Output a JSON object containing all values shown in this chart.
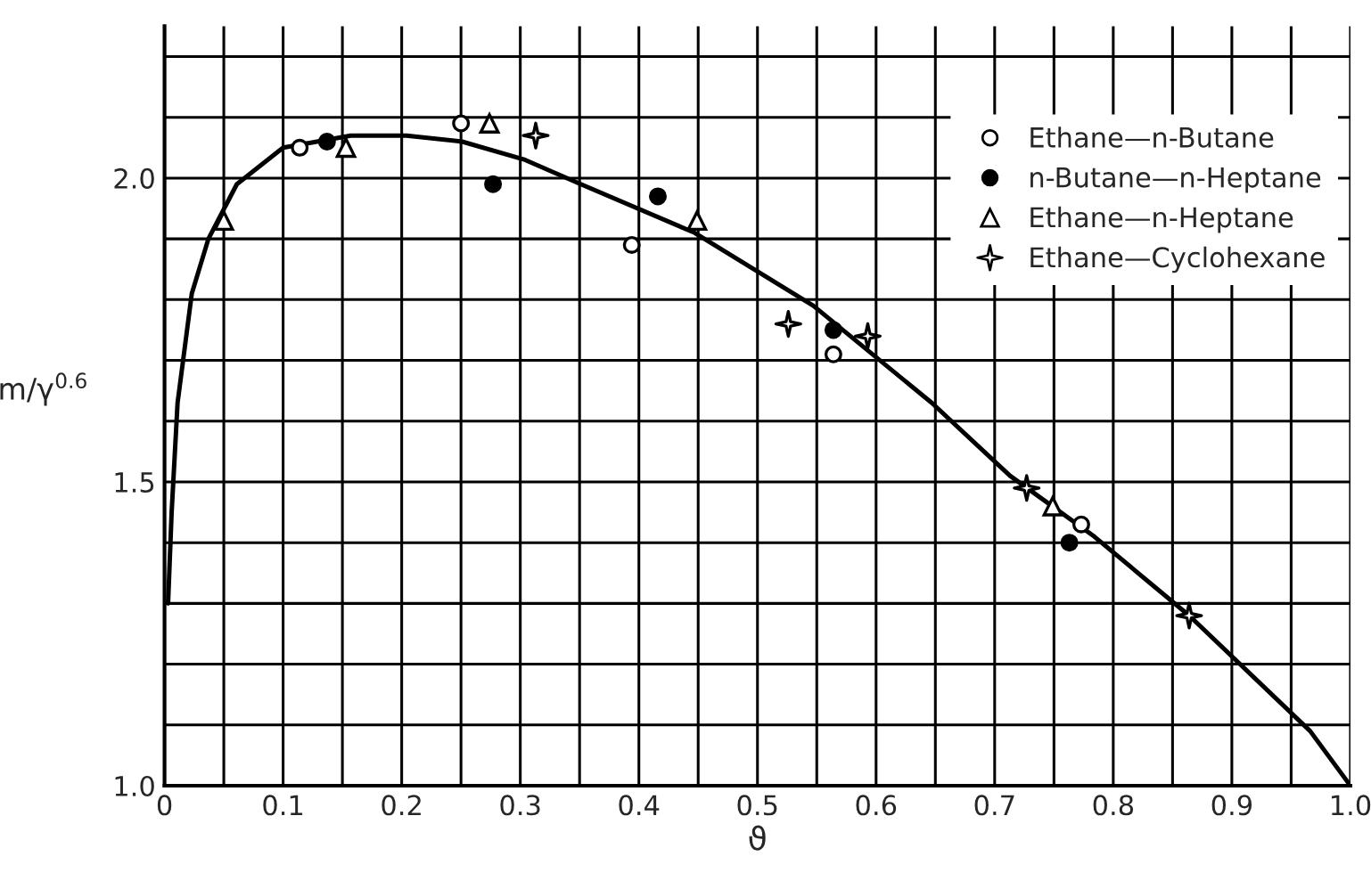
{
  "chart_data": {
    "type": "scatter",
    "xlabel": "ϑ",
    "ylabel": "m/γ$^{0.6}$",
    "xlim": [
      0,
      1.0
    ],
    "ylim": [
      1.0,
      2.25
    ],
    "xticks": [
      0,
      {
        "value": 0.05,
        "label": null
      },
      0.1,
      {
        "value": 0.15,
        "label": null
      },
      0.2,
      {
        "value": 0.25,
        "label": null
      },
      0.3,
      {
        "value": 0.35,
        "label": null
      },
      0.4,
      {
        "value": 0.45,
        "label": null
      },
      0.5,
      {
        "value": 0.55,
        "label": null
      },
      0.6,
      {
        "value": 0.65,
        "label": null
      },
      0.7,
      {
        "value": 0.75,
        "label": null
      },
      0.8,
      {
        "value": 0.85,
        "label": null
      },
      0.9,
      {
        "value": 0.95,
        "label": null
      },
      {
        "value": 1.0,
        "label": "1.0"
      }
    ],
    "yticks": [
      {
        "value": 1.0,
        "label": "1.0"
      },
      {
        "value": 1.1,
        "label": null
      },
      {
        "value": 1.2,
        "label": null
      },
      {
        "value": 1.3,
        "label": null
      },
      {
        "value": 1.4,
        "label": null
      },
      1.5,
      {
        "value": 1.6,
        "label": null
      },
      {
        "value": 1.7,
        "label": null
      },
      {
        "value": 1.8,
        "label": null
      },
      {
        "value": 1.9,
        "label": null
      },
      {
        "value": 2.0,
        "label": "2.0"
      },
      {
        "value": 2.1,
        "label": null
      },
      {
        "value": 2.2,
        "label": null
      }
    ],
    "grid": true,
    "legend": "top right",
    "series": [
      {
        "name": "Ethane—n-Butane",
        "marker": "circle",
        "color": "#ffffff",
        "x": [
          0.114,
          0.25,
          0.394,
          0.564,
          0.773
        ],
        "values": [
          2.05,
          2.09,
          1.89,
          1.71,
          1.43
        ]
      },
      {
        "name": "n-Butane—n-Heptane",
        "marker": "circle",
        "color": "#000000",
        "x": [
          0.137,
          0.277,
          0.416,
          0.564,
          0.763
        ],
        "values": [
          2.06,
          1.99,
          1.97,
          1.75,
          1.4
        ]
      },
      {
        "name": "Ethane—n-Heptane",
        "marker": "triangle",
        "color": "#ffffff",
        "x": [
          0.05,
          0.153,
          0.274,
          0.449,
          0.749
        ],
        "values": [
          1.93,
          2.05,
          2.09,
          1.93,
          1.46
        ]
      },
      {
        "name": "Ethane—Cyclohexane",
        "marker": "star",
        "color": "#ffffff",
        "x": [
          0.313,
          0.526,
          0.593,
          0.727,
          0.864
        ],
        "values": [
          2.07,
          1.76,
          1.74,
          1.49,
          1.28
        ]
      },
      {
        "type": "line",
        "marker": "none",
        "line_style": "solid",
        "color": "#000000",
        "x": [
          0.003,
          0.006,
          0.011,
          0.023,
          0.037,
          0.061,
          0.1,
          0.157,
          0.204,
          0.251,
          0.304,
          0.351,
          0.447,
          0.547,
          0.647,
          0.713,
          0.784,
          0.864,
          0.966,
          1.0
        ],
        "values": [
          1.3,
          1.45,
          1.63,
          1.81,
          1.9,
          1.99,
          2.05,
          2.07,
          2.07,
          2.06,
          2.03,
          1.99,
          1.91,
          1.79,
          1.63,
          1.51,
          1.41,
          1.28,
          1.09,
          1.0
        ]
      }
    ]
  }
}
